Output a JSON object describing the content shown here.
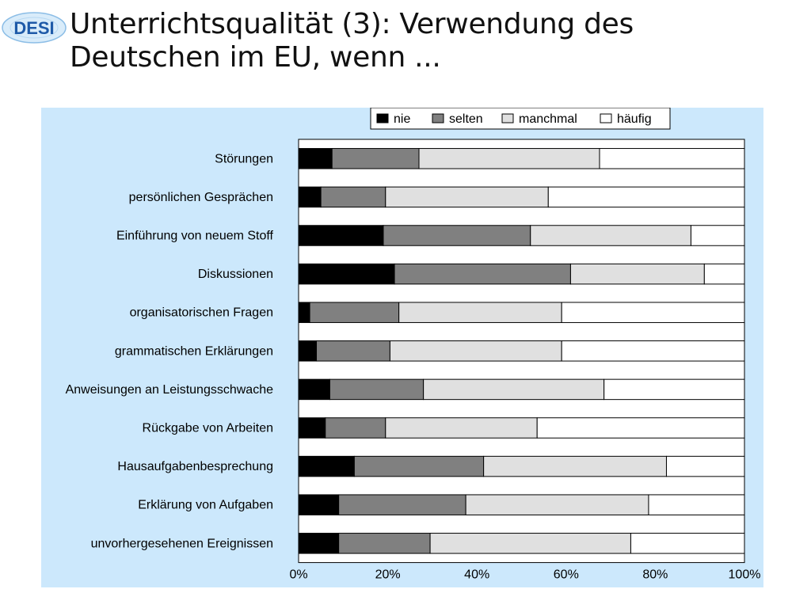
{
  "header": {
    "logo_text": "DESI",
    "title_line1": "Unterrichtsqualität (3): Verwendung des",
    "title_line2": "Deutschen im EU, wenn ..."
  },
  "colors": {
    "panel_background": "#cce8fc",
    "nie": "#000000",
    "selten": "#808080",
    "manchmal": "#e0e0e0",
    "haeufig": "#ffffff"
  },
  "chart_data": {
    "type": "bar",
    "orientation": "horizontal",
    "stacked": "percent",
    "title": "",
    "xlabel": "",
    "ylabel": "",
    "xlim": [
      0,
      100
    ],
    "x_tick_labels": [
      "0%",
      "20%",
      "40%",
      "60%",
      "80%",
      "100%"
    ],
    "legend_position": "top-right",
    "grid": false,
    "categories": [
      "Störungen",
      "persönlichen Gesprächen",
      "Einführung von neuem Stoff",
      "Diskussionen",
      "organisatorischen Fragen",
      "grammatischen Erklärungen",
      "Anweisungen an Leistungsschwache",
      "Rückgabe von Arbeiten",
      "Hausaufgabenbesprechung",
      "Erklärung von Aufgaben",
      "unvorhergesehenen Ereignissen"
    ],
    "series": [
      {
        "name": "nie",
        "color": "#000000",
        "values": [
          7.5,
          5,
          19,
          21.5,
          2.5,
          4,
          7,
          6,
          12.5,
          9,
          9
        ]
      },
      {
        "name": "selten",
        "color": "#808080",
        "values": [
          19.5,
          14.5,
          33,
          39.5,
          20,
          16.5,
          21,
          13.5,
          29,
          28.5,
          20.5
        ]
      },
      {
        "name": "manchmal",
        "color": "#e0e0e0",
        "values": [
          40.5,
          36.5,
          36,
          30,
          36.5,
          38.5,
          40.5,
          34,
          41,
          41,
          45
        ]
      },
      {
        "name": "häufig",
        "color": "#ffffff",
        "values": [
          32.5,
          44,
          12,
          9,
          41,
          41,
          31.5,
          46.5,
          17.5,
          21.5,
          25.5
        ]
      }
    ]
  }
}
